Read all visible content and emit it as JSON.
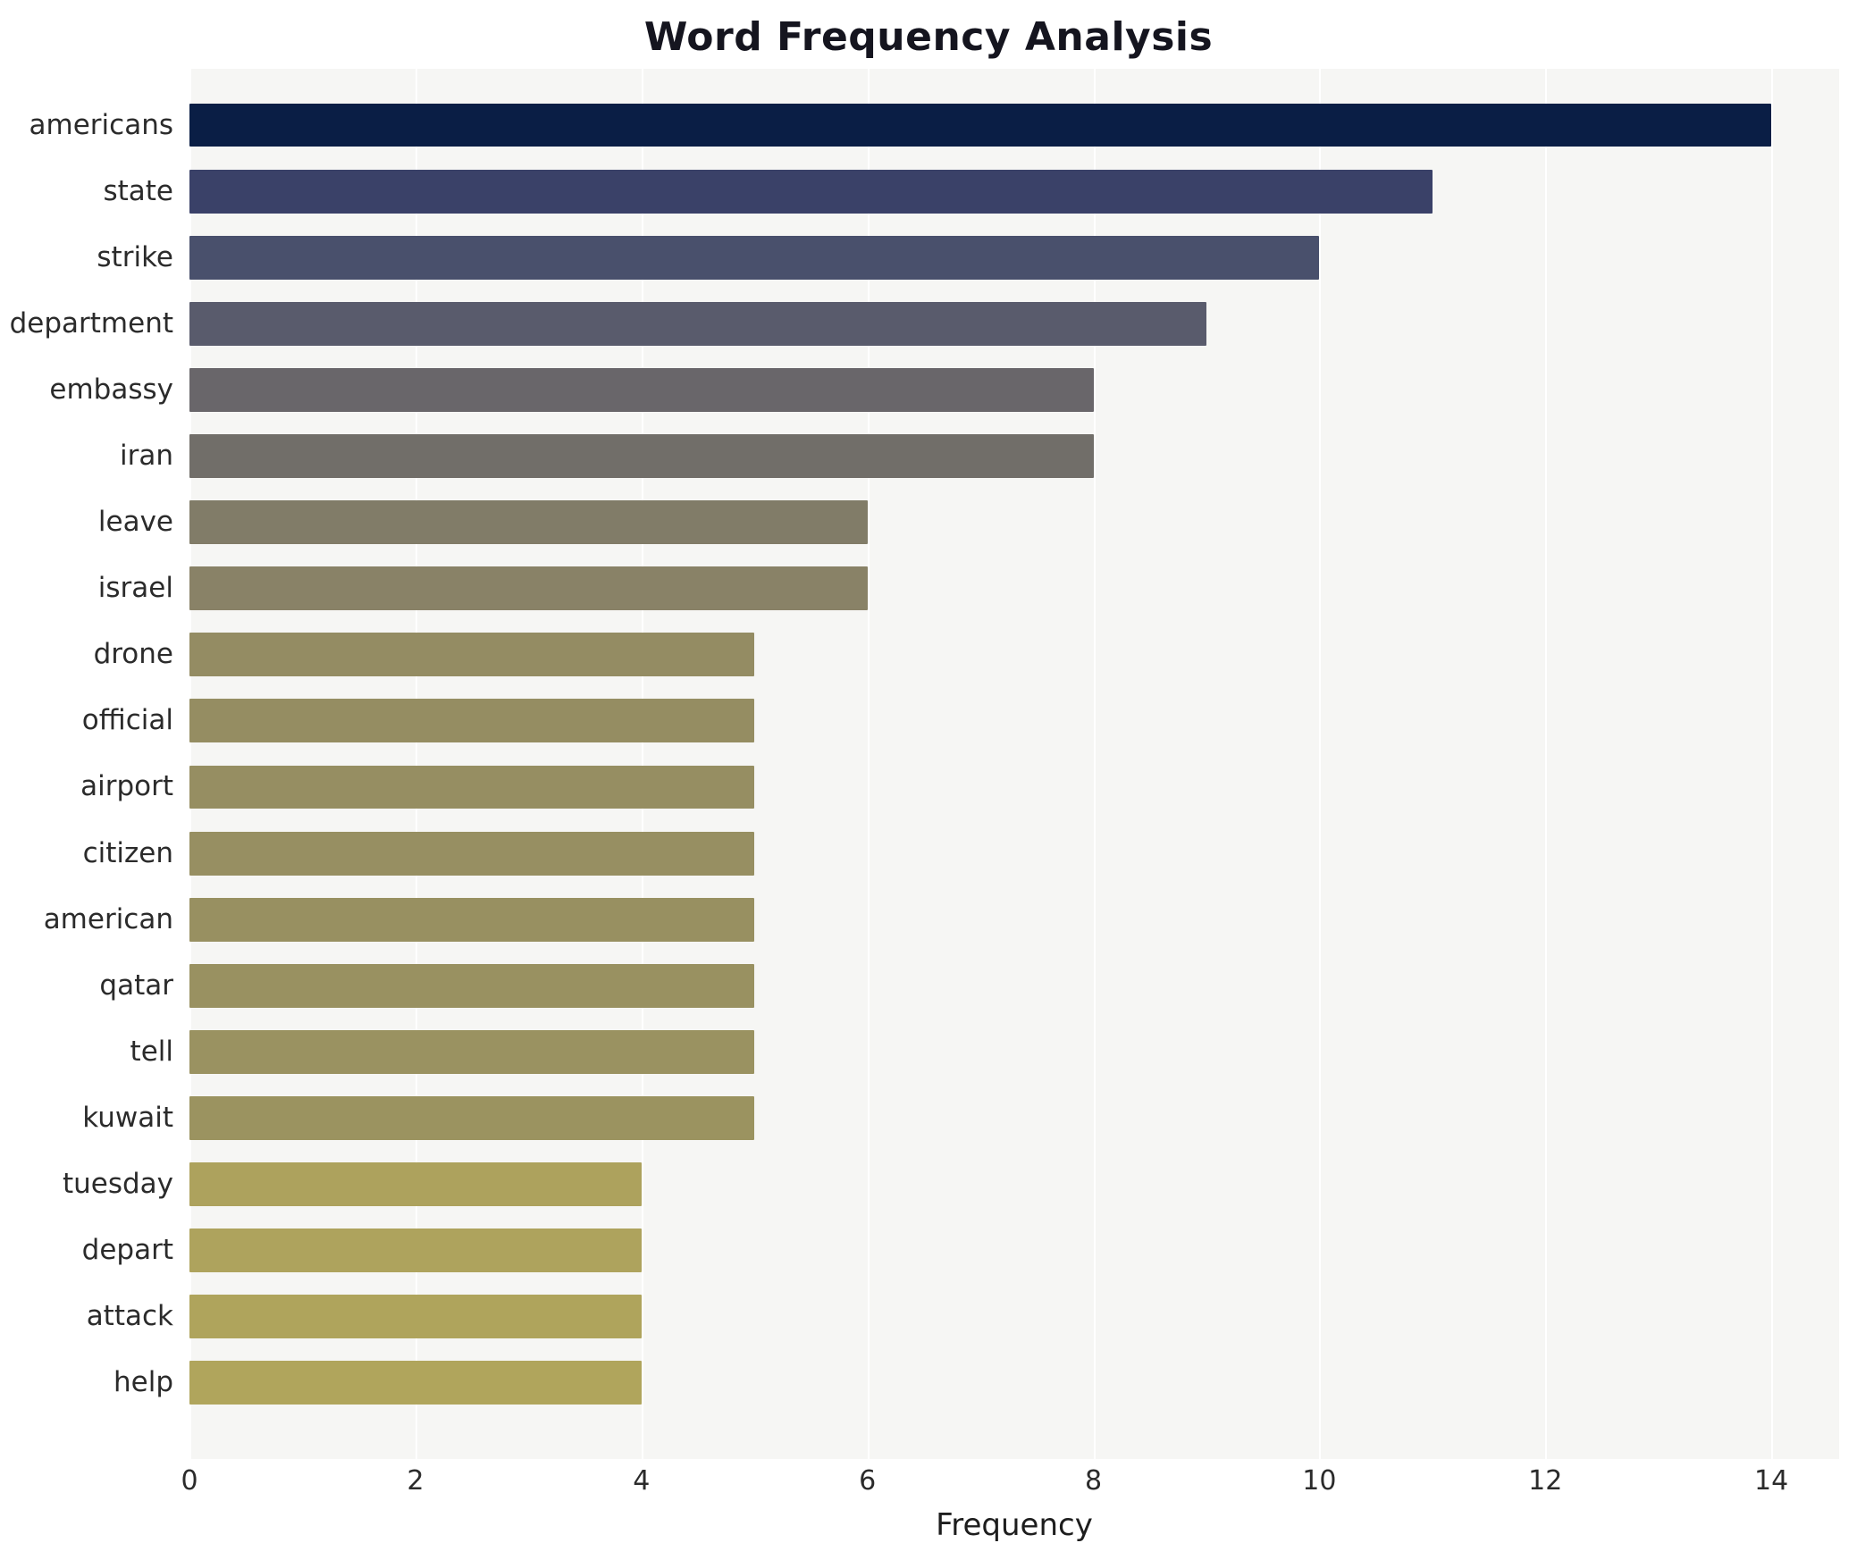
{
  "title": "Word Frequency Analysis",
  "chart_data": {
    "type": "bar",
    "orientation": "horizontal",
    "title": "Word Frequency Analysis",
    "xlabel": "Frequency",
    "ylabel": "",
    "categories": [
      "americans",
      "state",
      "strike",
      "department",
      "embassy",
      "iran",
      "leave",
      "israel",
      "drone",
      "official",
      "airport",
      "citizen",
      "american",
      "qatar",
      "tell",
      "kuwait",
      "tuesday",
      "depart",
      "attack",
      "help"
    ],
    "values": [
      14,
      11,
      10,
      9,
      8,
      8,
      6,
      6,
      5,
      5,
      5,
      5,
      5,
      5,
      5,
      5,
      4,
      4,
      4,
      4
    ],
    "bar_colors": [
      "#0a1e45",
      "#3a4168",
      "#49506c",
      "#595b6c",
      "#69666a",
      "#716e69",
      "#817c68",
      "#898267",
      "#948c63",
      "#958d62",
      "#968e62",
      "#978f62",
      "#989061",
      "#999161",
      "#9a9261",
      "#9b9360",
      "#ada25d",
      "#aea35d",
      "#afa45c",
      "#b0a55c"
    ],
    "xlim": [
      0,
      14.6
    ],
    "xticks": [
      0,
      2,
      4,
      6,
      8,
      10,
      12,
      14
    ],
    "grid": true,
    "legend": false,
    "plot_background": "#f6f6f4",
    "page_background": "#ffffff"
  }
}
